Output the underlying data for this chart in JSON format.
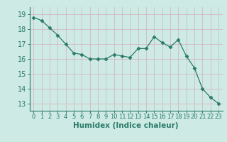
{
  "x": [
    0,
    1,
    2,
    3,
    4,
    5,
    6,
    7,
    8,
    9,
    10,
    11,
    12,
    13,
    14,
    15,
    16,
    17,
    18,
    19,
    20,
    21,
    22,
    23
  ],
  "y": [
    18.8,
    18.6,
    18.1,
    17.6,
    17.0,
    16.4,
    16.3,
    16.0,
    16.0,
    16.0,
    16.3,
    16.2,
    16.1,
    16.7,
    16.7,
    17.5,
    17.1,
    16.8,
    17.3,
    16.2,
    15.4,
    14.0,
    13.4,
    13.0
  ],
  "line_color": "#2a7a6a",
  "marker": "D",
  "marker_size": 2.5,
  "bg_color": "#ceeae4",
  "grid_color": "#b8d8d2",
  "xlabel": "Humidex (Indice chaleur)",
  "ylim": [
    12.5,
    19.5
  ],
  "yticks": [
    13,
    14,
    15,
    16,
    17,
    18,
    19
  ],
  "xticks": [
    0,
    1,
    2,
    3,
    4,
    5,
    6,
    7,
    8,
    9,
    10,
    11,
    12,
    13,
    14,
    15,
    16,
    17,
    18,
    19,
    20,
    21,
    22,
    23
  ],
  "tick_color": "#2a7a6a",
  "xlabel_fontsize": 7.5,
  "ytick_fontsize": 7,
  "xtick_fontsize": 6
}
